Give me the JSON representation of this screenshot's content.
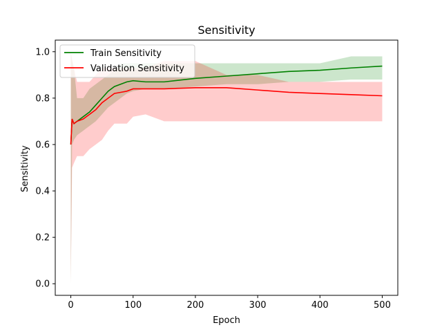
{
  "chart_data": {
    "type": "line",
    "title": "Sensitivity",
    "xlabel": "Epoch",
    "ylabel": "Sensitivity",
    "xlim": [
      -25,
      525
    ],
    "ylim": [
      -0.05,
      1.05
    ],
    "xticks": [
      0,
      100,
      200,
      300,
      400,
      500
    ],
    "yticks": [
      0.0,
      0.2,
      0.4,
      0.6,
      0.8,
      1.0
    ],
    "grid": false,
    "legend_position": "top-left",
    "series": [
      {
        "name": "Train Sensitivity",
        "color": "#008000",
        "x": [
          0,
          2,
          5,
          10,
          20,
          30,
          40,
          50,
          60,
          70,
          80,
          90,
          100,
          120,
          150,
          200,
          250,
          300,
          350,
          400,
          450,
          500
        ],
        "values": [
          0.6,
          0.71,
          0.69,
          0.7,
          0.72,
          0.74,
          0.77,
          0.8,
          0.83,
          0.85,
          0.86,
          0.87,
          0.875,
          0.87,
          0.87,
          0.885,
          0.895,
          0.905,
          0.915,
          0.92,
          0.93,
          0.938
        ],
        "band_upper": [
          1.0,
          0.96,
          0.93,
          0.8,
          0.8,
          0.84,
          0.86,
          0.88,
          0.9,
          0.92,
          0.95,
          0.95,
          0.95,
          0.95,
          0.95,
          0.95,
          0.95,
          0.95,
          0.95,
          0.95,
          0.98,
          0.98
        ],
        "band_lower": [
          0.0,
          0.6,
          0.62,
          0.64,
          0.66,
          0.68,
          0.7,
          0.73,
          0.76,
          0.78,
          0.8,
          0.82,
          0.83,
          0.84,
          0.84,
          0.85,
          0.86,
          0.86,
          0.87,
          0.87,
          0.88,
          0.88
        ]
      },
      {
        "name": "Validation Sensitivity",
        "color": "#ff0000",
        "x": [
          0,
          2,
          5,
          10,
          20,
          30,
          40,
          50,
          60,
          70,
          80,
          90,
          100,
          120,
          150,
          200,
          250,
          300,
          350,
          400,
          450,
          500
        ],
        "values": [
          0.6,
          0.71,
          0.69,
          0.7,
          0.71,
          0.73,
          0.75,
          0.78,
          0.8,
          0.82,
          0.825,
          0.83,
          0.84,
          0.84,
          0.84,
          0.845,
          0.845,
          0.835,
          0.825,
          0.82,
          0.815,
          0.81
        ],
        "band_upper": [
          1.0,
          0.97,
          0.93,
          0.87,
          0.87,
          0.87,
          0.9,
          0.93,
          0.93,
          0.93,
          0.93,
          0.93,
          0.93,
          0.93,
          0.96,
          0.96,
          0.9,
          0.9,
          0.87,
          0.87,
          0.87,
          0.87
        ],
        "band_lower": [
          0.0,
          0.5,
          0.52,
          0.55,
          0.55,
          0.58,
          0.6,
          0.62,
          0.66,
          0.69,
          0.69,
          0.69,
          0.72,
          0.73,
          0.7,
          0.7,
          0.7,
          0.7,
          0.7,
          0.7,
          0.7,
          0.7
        ]
      }
    ]
  }
}
